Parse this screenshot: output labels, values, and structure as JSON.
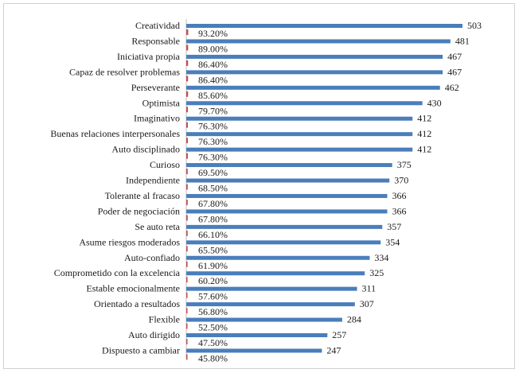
{
  "chart_data": {
    "type": "bar",
    "orientation": "horizontal",
    "categories": [
      "Creatividad",
      "Responsable",
      "Iniciativa propia",
      "Capaz de resolver problemas",
      "Perseverante",
      "Optimista",
      "Imaginativo",
      "Buenas relaciones interpersonales",
      "Auto disciplinado",
      "Curioso",
      "Independiente",
      "Tolerante al fracaso",
      "Poder de negociación",
      "Se auto reta",
      "Asume riesgos moderados",
      "Auto-confiado",
      "Comprometido con la excelencia",
      "Estable emocionalmente",
      "Orientado a resultados",
      "Flexible",
      "Auto dirigido",
      "Dispuesto a cambiar"
    ],
    "series": [
      {
        "values": [
          503,
          481,
          467,
          467,
          462,
          430,
          412,
          412,
          412,
          375,
          370,
          366,
          366,
          357,
          354,
          334,
          325,
          311,
          307,
          284,
          257,
          247
        ],
        "color": "#4a7ebb"
      },
      {
        "values": [
          93.2,
          89.0,
          86.4,
          86.4,
          85.6,
          79.7,
          76.3,
          76.3,
          76.3,
          69.5,
          68.5,
          67.8,
          67.8,
          66.1,
          65.5,
          61.9,
          60.2,
          57.6,
          56.8,
          52.5,
          47.5,
          45.8
        ],
        "color": "#c0504d"
      }
    ],
    "value_labels": [
      "503",
      "481",
      "467",
      "467",
      "462",
      "430",
      "412",
      "412",
      "412",
      "375",
      "370",
      "366",
      "366",
      "357",
      "354",
      "334",
      "325",
      "311",
      "307",
      "284",
      "257",
      "247"
    ],
    "percent_labels": [
      "93.20%",
      "89.00%",
      "86.40%",
      "86.40%",
      "85.60%",
      "79.70%",
      "76.30%",
      "76.30%",
      "76.30%",
      "69.50%",
      "68.50%",
      "67.80%",
      "67.80%",
      "66.10%",
      "65.50%",
      "61.90%",
      "60.20%",
      "57.60%",
      "56.80%",
      "52.50%",
      "47.50%",
      "45.80%"
    ],
    "title": "",
    "xlabel": "",
    "ylabel": "",
    "xlim": [
      0,
      503
    ],
    "grid": false,
    "legend": "none"
  }
}
